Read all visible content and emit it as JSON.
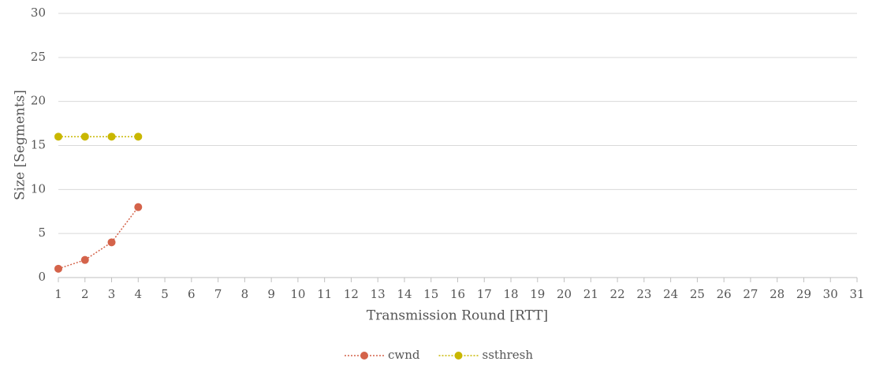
{
  "chart_data": {
    "type": "line",
    "x_label": "Transmission Round [RTT]",
    "y_label": "Size [Segments]",
    "x": [
      1,
      2,
      3,
      4
    ],
    "series": [
      {
        "name": "cwnd",
        "color": "#d4634a",
        "values": [
          1,
          2,
          4,
          8
        ]
      },
      {
        "name": "ssthresh",
        "color": "#c9b700",
        "values": [
          16,
          16,
          16,
          16
        ]
      }
    ],
    "xlim": [
      1,
      31
    ],
    "xticks": [
      1,
      2,
      3,
      4,
      5,
      6,
      7,
      8,
      9,
      10,
      11,
      12,
      13,
      14,
      15,
      16,
      17,
      18,
      19,
      20,
      21,
      22,
      23,
      24,
      25,
      26,
      27,
      28,
      29,
      30,
      31
    ],
    "ylim": [
      0,
      30
    ],
    "yticks": [
      0,
      5,
      10,
      15,
      20,
      25,
      30
    ],
    "grid": true,
    "legend": "bottom"
  }
}
